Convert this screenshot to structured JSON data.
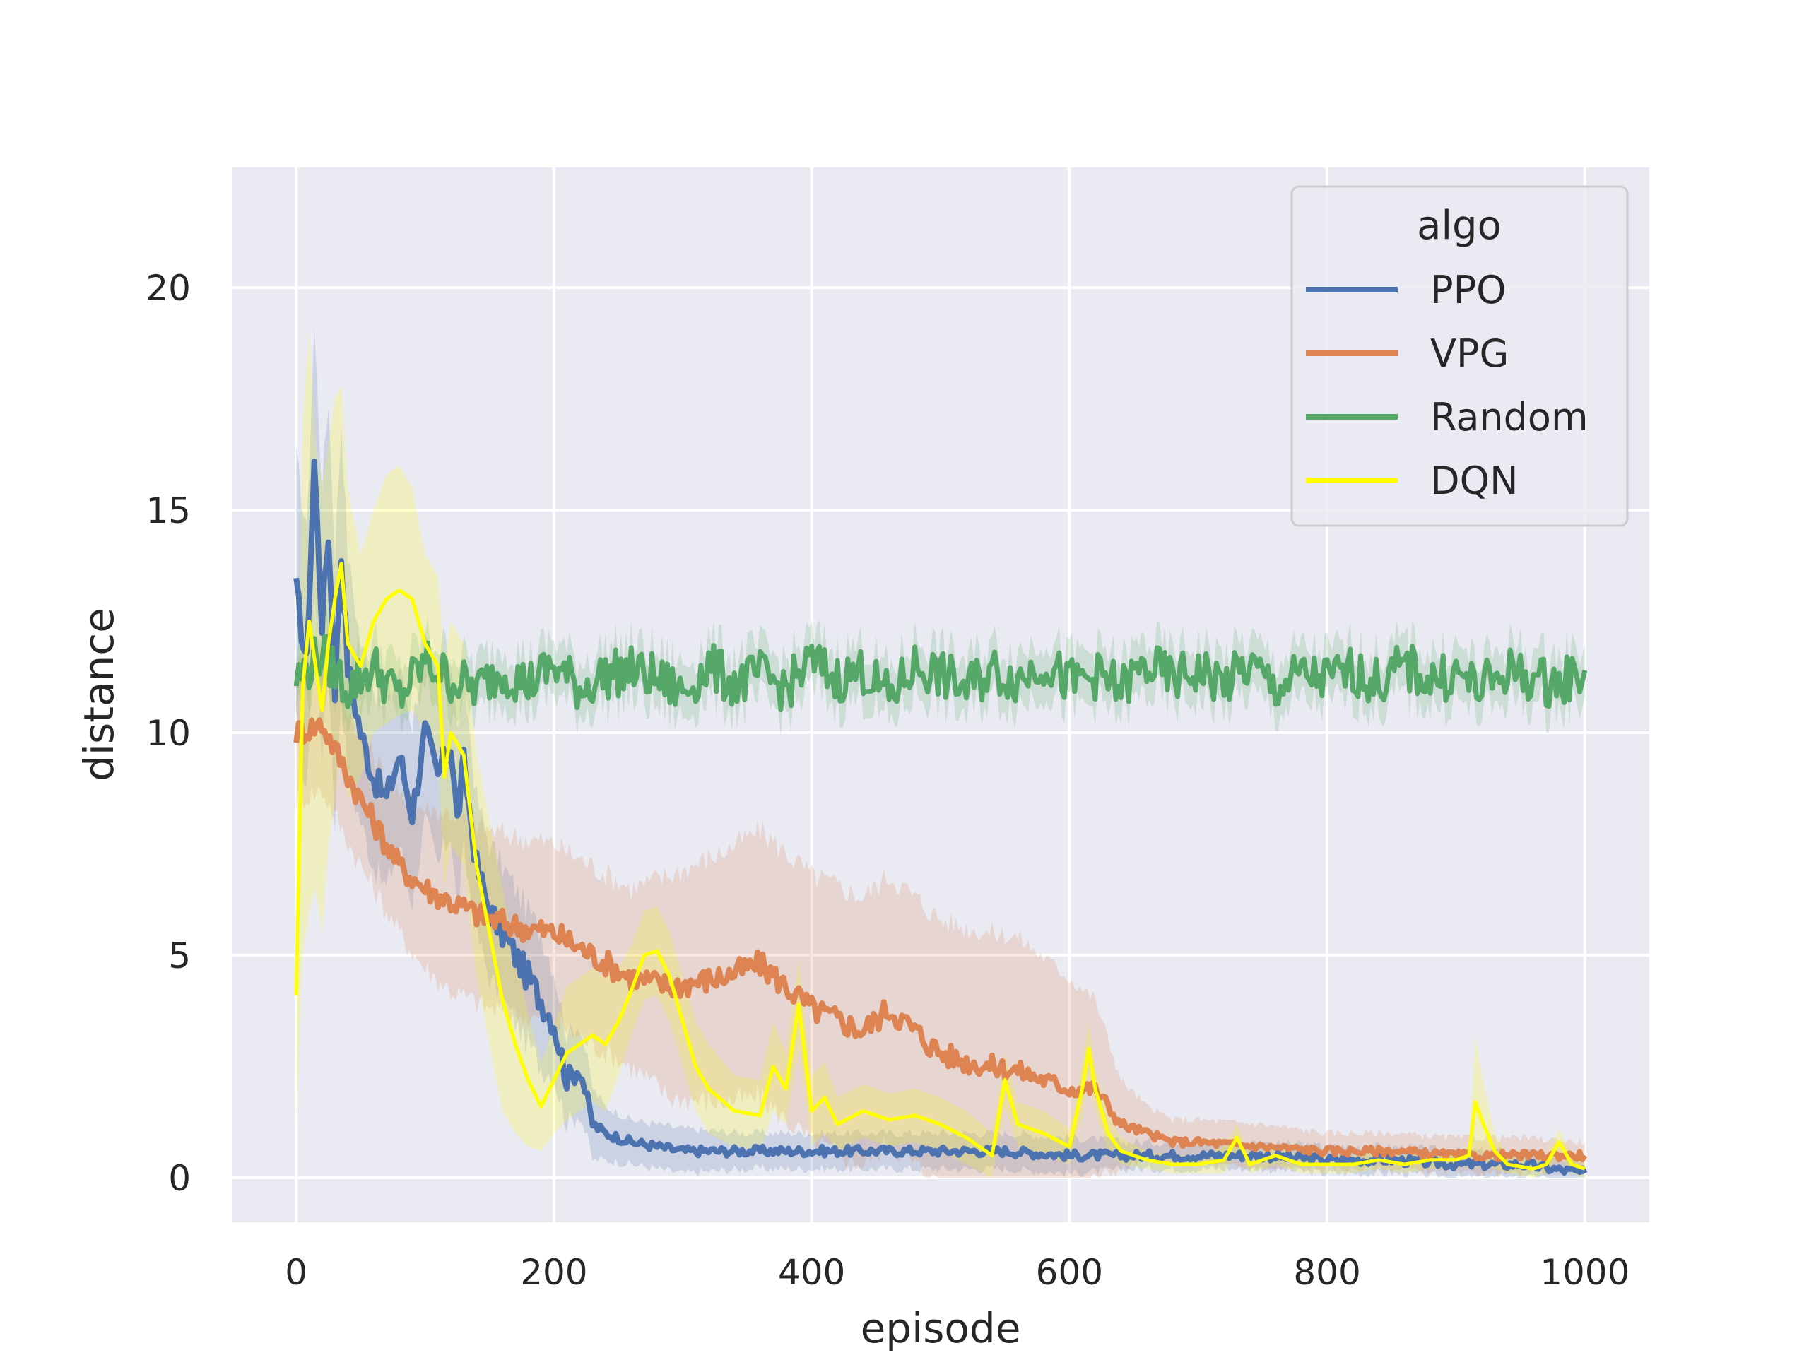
{
  "colors": {
    "PPO": "#4c72b0",
    "VPG": "#dd8452",
    "Random": "#55a868",
    "DQN": "#ffff00",
    "plot_background": "#eaeaf2",
    "grid": "#ffffff",
    "text": "#262626"
  },
  "chart_data": {
    "type": "line",
    "title": "",
    "xlabel": "episode",
    "ylabel": "distance",
    "xlim": [
      -50,
      1050
    ],
    "ylim": [
      -1,
      22.7
    ],
    "xticks": [
      0,
      200,
      400,
      600,
      800,
      1000
    ],
    "yticks": [
      0,
      5,
      10,
      15,
      20
    ],
    "grid": true,
    "legend": {
      "title": "algo",
      "placement": "top-right",
      "entries": [
        "PPO",
        "VPG",
        "Random",
        "DQN"
      ]
    },
    "series": [
      {
        "name": "PPO",
        "x": [
          0,
          8,
          14,
          20,
          25,
          30,
          35,
          40,
          50,
          60,
          70,
          80,
          90,
          100,
          110,
          120,
          125,
          130,
          140,
          150,
          160,
          170,
          180,
          190,
          200,
          210,
          220,
          230,
          240,
          260,
          280,
          300,
          350,
          400,
          450,
          500,
          550,
          600,
          650,
          700,
          750,
          800,
          850,
          900,
          950,
          1000
        ],
        "y": [
          13.2,
          11.5,
          16.1,
          12.5,
          14.5,
          11.0,
          14.0,
          11.5,
          10.0,
          9.0,
          8.5,
          9.5,
          8.2,
          10.0,
          9.0,
          9.8,
          8.0,
          9.3,
          7.0,
          6.0,
          5.5,
          5.0,
          4.5,
          4.0,
          3.5,
          2.2,
          2.5,
          1.2,
          1.0,
          0.8,
          0.7,
          0.6,
          0.6,
          0.6,
          0.6,
          0.6,
          0.6,
          0.5,
          0.5,
          0.5,
          0.5,
          0.4,
          0.4,
          0.3,
          0.3,
          0.1
        ],
        "band": [
          3.0,
          3.0,
          3.0,
          3.0,
          3.0,
          3.0,
          3.0,
          2.5,
          2.0,
          2.0,
          2.0,
          2.0,
          2.0,
          2.0,
          2.0,
          2.0,
          2.0,
          2.0,
          1.5,
          1.5,
          1.5,
          1.5,
          1.5,
          1.5,
          1.2,
          1.0,
          1.0,
          0.8,
          0.6,
          0.5,
          0.5,
          0.5,
          0.4,
          0.4,
          0.4,
          0.4,
          0.4,
          0.4,
          0.3,
          0.3,
          0.3,
          0.3,
          0.3,
          0.3,
          0.3,
          0.2
        ]
      },
      {
        "name": "VPG",
        "x": [
          0,
          20,
          50,
          80,
          100,
          120,
          150,
          180,
          200,
          230,
          260,
          290,
          330,
          360,
          400,
          440,
          460,
          500,
          520,
          560,
          600,
          620,
          640,
          660,
          680,
          700,
          750,
          800,
          850,
          900,
          950,
          1000
        ],
        "y": [
          10.0,
          10.2,
          8.5,
          7.0,
          6.5,
          6.2,
          5.8,
          5.6,
          5.5,
          5.0,
          4.5,
          4.3,
          4.5,
          4.8,
          3.8,
          3.3,
          3.8,
          2.8,
          2.6,
          2.4,
          2.0,
          2.0,
          1.2,
          1.0,
          0.8,
          0.8,
          0.7,
          0.6,
          0.6,
          0.5,
          0.5,
          0.5
        ],
        "band": [
          1.5,
          1.5,
          1.5,
          1.5,
          1.8,
          2.0,
          2.0,
          2.0,
          2.0,
          2.0,
          2.0,
          2.5,
          2.8,
          3.0,
          3.0,
          3.0,
          3.0,
          3.0,
          3.0,
          3.0,
          2.5,
          2.0,
          1.0,
          0.6,
          0.5,
          0.5,
          0.5,
          0.4,
          0.4,
          0.4,
          0.4,
          0.3
        ]
      },
      {
        "name": "Random",
        "x": [
          0,
          20,
          40,
          60,
          80,
          100,
          120,
          140,
          160,
          180,
          200,
          220,
          240,
          260,
          280,
          300,
          320,
          340,
          360,
          380,
          400,
          420,
          440,
          460,
          480,
          500,
          520,
          540,
          560,
          580,
          600,
          620,
          640,
          660,
          680,
          700,
          720,
          740,
          760,
          780,
          800,
          820,
          840,
          860,
          880,
          900,
          920,
          940,
          960,
          980,
          1000
        ],
        "y": [
          11.2,
          11.8,
          11.0,
          11.5,
          10.8,
          11.6,
          11.2,
          11.0,
          11.4,
          11.1,
          11.5,
          11.0,
          11.3,
          11.4,
          11.2,
          10.9,
          11.5,
          11.1,
          11.3,
          11.0,
          11.6,
          11.2,
          11.4,
          10.8,
          11.5,
          11.3,
          11.0,
          11.4,
          11.2,
          11.6,
          11.1,
          11.3,
          11.0,
          11.5,
          11.2,
          11.4,
          11.1,
          11.5,
          11.0,
          11.3,
          11.2,
          11.4,
          11.1,
          11.5,
          11.2,
          11.3,
          11.0,
          11.4,
          11.2,
          11.1,
          11.4
        ],
        "band": [
          0.6,
          0.6,
          0.6,
          0.6,
          0.6,
          0.6,
          0.6,
          0.6,
          0.6,
          0.6,
          0.6,
          0.6,
          0.6,
          0.6,
          0.6,
          0.6,
          0.6,
          0.6,
          0.6,
          0.6,
          0.6,
          0.6,
          0.6,
          0.6,
          0.6,
          0.6,
          0.6,
          0.6,
          0.6,
          0.6,
          0.6,
          0.6,
          0.6,
          0.6,
          0.6,
          0.6,
          0.6,
          0.6,
          0.6,
          0.6,
          0.6,
          0.6,
          0.6,
          0.6,
          0.6,
          0.6,
          0.6,
          0.6,
          0.6,
          0.6,
          0.6
        ]
      },
      {
        "name": "DQN",
        "x": [
          0,
          5,
          10,
          15,
          20,
          25,
          30,
          35,
          40,
          50,
          60,
          70,
          80,
          90,
          100,
          110,
          115,
          120,
          130,
          140,
          150,
          160,
          170,
          180,
          190,
          200,
          210,
          220,
          230,
          240,
          250,
          260,
          270,
          280,
          290,
          300,
          310,
          320,
          340,
          360,
          370,
          380,
          390,
          400,
          410,
          420,
          440,
          460,
          480,
          500,
          520,
          540,
          550,
          560,
          580,
          600,
          610,
          615,
          620,
          630,
          640,
          660,
          680,
          700,
          720,
          730,
          740,
          760,
          780,
          800,
          820,
          840,
          860,
          880,
          900,
          910,
          915,
          920,
          930,
          940,
          960,
          970,
          980,
          990,
          1000
        ],
        "y": [
          4.1,
          11.0,
          12.5,
          11.5,
          10.5,
          12.0,
          13.0,
          13.8,
          12.0,
          11.5,
          12.5,
          13.0,
          13.2,
          13.0,
          12.0,
          11.5,
          9.0,
          10.0,
          9.5,
          7.0,
          5.5,
          4.0,
          3.0,
          2.2,
          1.6,
          2.2,
          2.8,
          3.0,
          3.2,
          3.0,
          3.5,
          4.2,
          5.0,
          5.1,
          4.5,
          3.5,
          2.5,
          2.0,
          1.5,
          1.4,
          2.5,
          2.0,
          3.9,
          1.5,
          1.8,
          1.2,
          1.5,
          1.3,
          1.4,
          1.2,
          0.9,
          0.5,
          2.2,
          1.2,
          1.0,
          0.7,
          2.0,
          2.9,
          2.0,
          1.0,
          0.6,
          0.4,
          0.3,
          0.3,
          0.4,
          0.9,
          0.3,
          0.5,
          0.3,
          0.3,
          0.3,
          0.4,
          0.3,
          0.4,
          0.4,
          0.5,
          1.7,
          1.3,
          0.6,
          0.3,
          0.2,
          0.3,
          0.8,
          0.3,
          0.2
        ],
        "band": [
          3.0,
          6.0,
          6.5,
          5.0,
          5.0,
          4.5,
          4.5,
          4.0,
          3.5,
          2.5,
          2.5,
          2.8,
          2.8,
          2.5,
          2.0,
          2.0,
          2.5,
          2.5,
          2.5,
          2.5,
          2.5,
          2.5,
          2.0,
          1.5,
          1.0,
          1.2,
          1.5,
          1.5,
          1.5,
          1.5,
          1.2,
          1.0,
          1.0,
          1.0,
          1.0,
          1.0,
          1.0,
          1.0,
          0.8,
          0.8,
          1.0,
          0.8,
          1.0,
          0.8,
          0.8,
          0.6,
          0.6,
          0.6,
          0.6,
          0.6,
          0.6,
          0.5,
          0.6,
          0.5,
          0.5,
          0.4,
          0.6,
          0.6,
          0.5,
          0.4,
          0.3,
          0.2,
          0.2,
          0.2,
          0.3,
          0.3,
          0.2,
          0.2,
          0.2,
          0.2,
          0.2,
          0.2,
          0.2,
          0.2,
          0.2,
          0.2,
          1.5,
          1.0,
          0.4,
          0.2,
          0.2,
          0.2,
          0.3,
          0.2,
          0.2
        ]
      }
    ]
  }
}
